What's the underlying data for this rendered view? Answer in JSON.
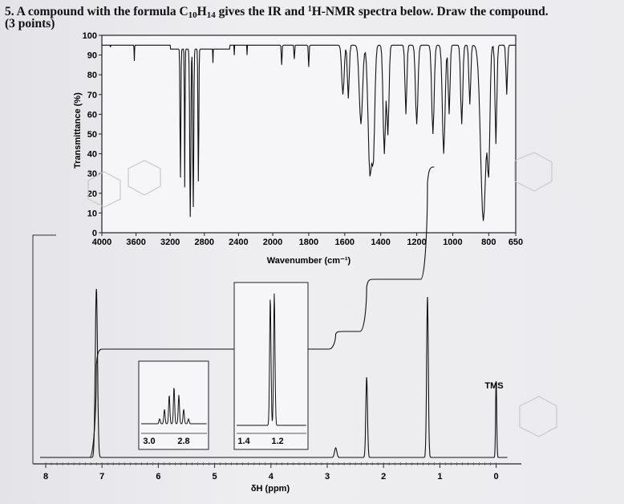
{
  "question": {
    "number": "5.",
    "text_before": "A compound with the formula C",
    "c_sub": "10",
    "h": "H",
    "h_sub": "14",
    "text_mid": " gives the IR and ",
    "nmr_sup": "1",
    "text_after": "H-NMR spectra below.  Draw the compound.",
    "points": "(3 points)"
  },
  "ir": {
    "ylabel": "Transmittance (%)",
    "xlabel": "Wavenumber (cm⁻¹)",
    "y_ticks": [
      "100",
      "90",
      "80",
      "70",
      "60",
      "50",
      "40",
      "30",
      "20",
      "10",
      "0"
    ],
    "x_ticks": [
      "4000",
      "3600",
      "3200",
      "2800",
      "2400",
      "2000",
      "1800",
      "1600",
      "1400",
      "1200",
      "1000",
      "800",
      "650"
    ]
  },
  "nmr": {
    "xlabel": "δH (ppm)",
    "x_ticks": [
      "8",
      "7",
      "6",
      "5",
      "4",
      "3",
      "2",
      "1",
      "0"
    ],
    "tms_label": "TMS",
    "inset1_ticks": [
      "3.0",
      "2.8"
    ],
    "inset2_ticks": [
      "1.4",
      "1.2"
    ]
  }
}
